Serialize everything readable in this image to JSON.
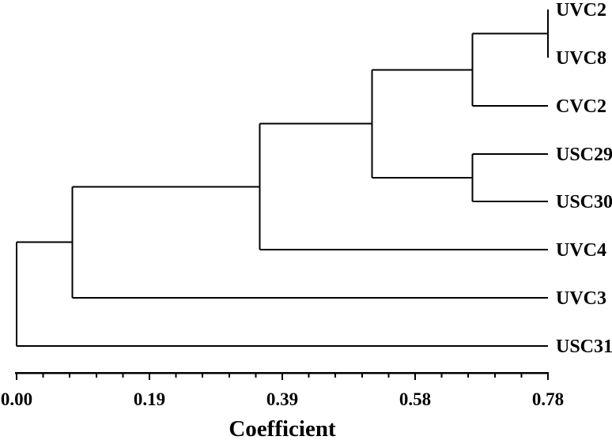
{
  "figure": {
    "background": "#ffffff",
    "line_color": "#000000",
    "text_color": "#000000"
  },
  "chart_data": {
    "type": "dendrogram",
    "orientation": "horizontal-right",
    "title": "",
    "leaves": [
      "UVC2",
      "UVC8",
      "CVC2",
      "USC29",
      "USC30",
      "UVC4",
      "UVC3",
      "USC31"
    ],
    "merges": [
      {
        "id": "M1",
        "a": "UVC2",
        "b": "UVC8",
        "coefficient": 0.78
      },
      {
        "id": "M2",
        "a": "M1",
        "b": "CVC2",
        "coefficient": 0.669
      },
      {
        "id": "M3",
        "a": "USC29",
        "b": "USC30",
        "coefficient": 0.669
      },
      {
        "id": "M4",
        "a": "M2",
        "b": "M3",
        "coefficient": 0.522
      },
      {
        "id": "M5",
        "a": "M4",
        "b": "UVC4",
        "coefficient": 0.357
      },
      {
        "id": "M6",
        "a": "M5",
        "b": "UVC3",
        "coefficient": 0.082
      },
      {
        "id": "M7",
        "a": "M6",
        "b": "USC31",
        "coefficient": 0.0
      }
    ],
    "axis": {
      "label": "Coefficient",
      "min": 0.0,
      "max": 0.78,
      "tick_labels": [
        "0.00",
        "0.19",
        "0.39",
        "0.58",
        "0.78"
      ],
      "tick_values": [
        0.0,
        0.195,
        0.39,
        0.585,
        0.78
      ],
      "minor_ticks_per_interval": 4,
      "grid": false
    }
  }
}
